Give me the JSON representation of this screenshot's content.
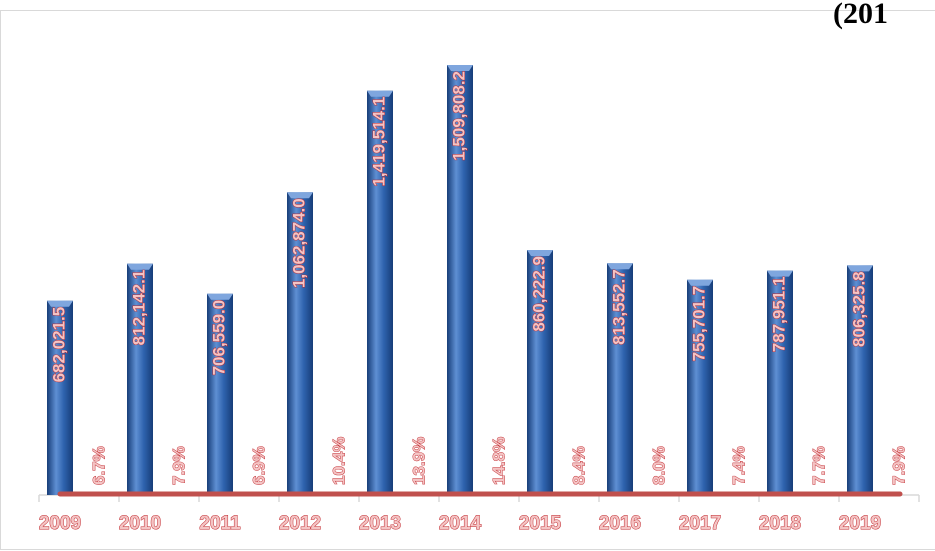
{
  "title": "(201",
  "chart_data": {
    "type": "bar",
    "categories": [
      "2009",
      "2010",
      "2011",
      "2012",
      "2013",
      "2014",
      "2015",
      "2016",
      "2017",
      "2018",
      "2019"
    ],
    "series": [
      {
        "values": [
          682021.5,
          812142.1,
          706559.0,
          1062874.0,
          1419514.1,
          1509808.2,
          860222.9,
          813552.7,
          755701.7,
          787951.1,
          806325.8
        ],
        "labels": [
          "682,021.5",
          "812,142.1",
          "706,559.0",
          "1,062,874.0",
          "1,419,514.1",
          "1,509,808.2",
          "860,222.9",
          "813,552.7",
          "755,701.7",
          "787,951.1",
          "806,325.8"
        ]
      },
      {
        "values": [
          6.7,
          7.9,
          6.9,
          10.4,
          13.9,
          14.8,
          8.4,
          8.0,
          7.4,
          7.7,
          7.9
        ],
        "labels": [
          "6.7%",
          "7.9%",
          "6.9%",
          "10.4%",
          "13.9%",
          "14.8%",
          "8.4%",
          "8.0%",
          "7.4%",
          "7.7%",
          "7.9%"
        ]
      }
    ],
    "ylim": [
      0,
      1600000
    ],
    "grid": false,
    "legend": "none",
    "colors": {
      "bar": "#2e62ad",
      "bar_dark": "#173d78",
      "bar_light": "#5e8fd3",
      "line": "#c0504d",
      "label_fill": "#f4c4c4",
      "label_stroke": "#c0282e"
    }
  }
}
